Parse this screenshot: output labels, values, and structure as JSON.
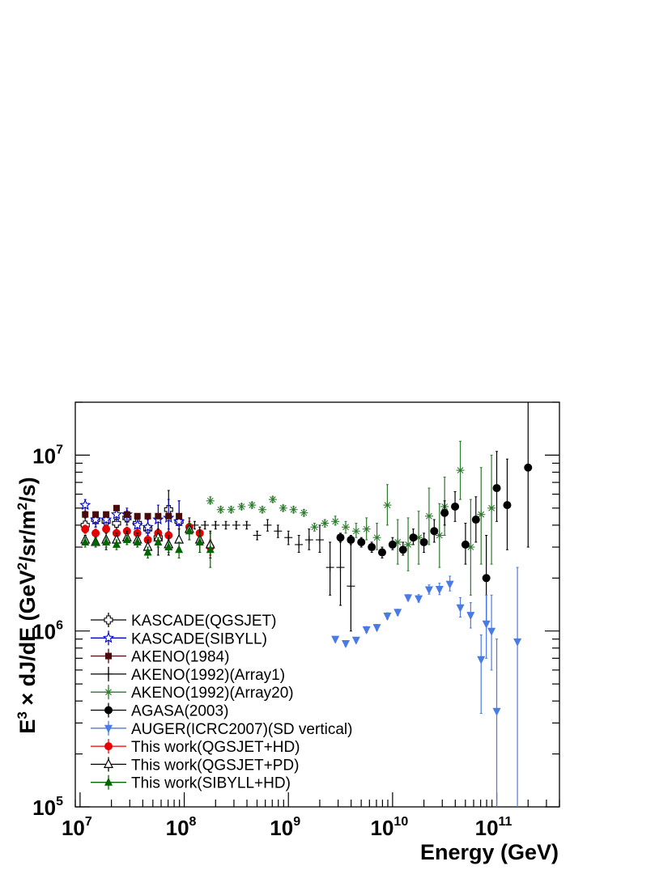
{
  "chart_data": {
    "type": "scatter",
    "title": "",
    "xlabel": "Energy (GeV)",
    "ylabel": "E^3 × dJ/dE (GeV^2/sr/m^2/s)",
    "x_scale": "log",
    "y_scale": "log",
    "xlim": [
      9000000.0,
      400000000000.0
    ],
    "ylim": [
      100000.0,
      20000000.0
    ],
    "grid": false,
    "legend_position": "bottom-left",
    "x_ticks": [
      {
        "base": "10",
        "exp": "7"
      },
      {
        "base": "10",
        "exp": "8"
      },
      {
        "base": "10",
        "exp": "9"
      },
      {
        "base": "10",
        "exp": "10"
      },
      {
        "base": "10",
        "exp": "11"
      }
    ],
    "y_ticks": [
      {
        "base": "10",
        "exp": "5"
      },
      {
        "base": "10",
        "exp": "6"
      },
      {
        "base": "10",
        "exp": "7"
      }
    ],
    "series": [
      {
        "name": "KASCADE(QGSJET)",
        "marker": "open-cross",
        "color": "#000000",
        "points": [
          [
            11200000.0,
            4000000.0,
            3600000.0,
            4400000.0
          ],
          [
            14100000.0,
            4300000.0,
            3900000.0,
            4700000.0
          ],
          [
            17800000.0,
            4200000.0,
            3800000.0,
            4600000.0
          ],
          [
            22400000.0,
            4100000.0,
            3700000.0,
            4500000.0
          ],
          [
            28200000.0,
            4400000.0,
            4000000.0,
            4800000.0
          ],
          [
            35500000.0,
            4100000.0,
            3700000.0,
            4500000.0
          ],
          [
            44700000.0,
            3800000.0,
            3300000.0,
            4300000.0
          ],
          [
            56200000.0,
            3400000.0,
            2700000.0,
            4200000.0
          ],
          [
            70800000.0,
            4900000.0,
            3800000.0,
            6300000.0
          ],
          [
            89100000.0,
            4200000.0,
            3200000.0,
            5500000.0
          ]
        ]
      },
      {
        "name": "KASCADE(SIBYLL)",
        "marker": "open-star",
        "color": "#0000cc",
        "points": [
          [
            11200000.0,
            5200000.0,
            4800000.0,
            5600000.0
          ],
          [
            14100000.0,
            4300000.0,
            3900000.0,
            4700000.0
          ],
          [
            17800000.0,
            4300000.0,
            3900000.0,
            4700000.0
          ],
          [
            22400000.0,
            4600000.0,
            4200000.0,
            5000000.0
          ],
          [
            28200000.0,
            4600000.0,
            4200000.0,
            5000000.0
          ],
          [
            35500000.0,
            4000000.0,
            3600000.0,
            4400000.0
          ],
          [
            44700000.0,
            3900000.0,
            3400000.0,
            4400000.0
          ],
          [
            56200000.0,
            4300000.0,
            3600000.0,
            5200000.0
          ],
          [
            70800000.0,
            4400000.0,
            3500000.0,
            5600000.0
          ],
          [
            89100000.0,
            4200000.0,
            3200000.0,
            5500000.0
          ]
        ]
      },
      {
        "name": "AKENO(1984)",
        "marker": "filled-square",
        "color": "#4a0a0a",
        "points": [
          [
            11200000.0,
            4600000.0
          ],
          [
            14100000.0,
            4600000.0
          ],
          [
            17800000.0,
            4600000.0
          ],
          [
            22400000.0,
            5000000.0
          ],
          [
            28200000.0,
            4600000.0
          ],
          [
            35500000.0,
            4500000.0
          ],
          [
            44700000.0,
            4500000.0
          ],
          [
            56200000.0,
            4500000.0
          ],
          [
            70800000.0,
            4500000.0
          ],
          [
            89100000.0,
            4500000.0
          ]
        ]
      },
      {
        "name": "AKENO(1992)(Array1)",
        "marker": "cross",
        "color": "#000000",
        "points": [
          [
            126000000.0,
            4000000.0,
            3800000.0,
            4200000.0
          ],
          [
            158000000.0,
            4000000.0,
            3800000.0,
            4200000.0
          ],
          [
            200000000.0,
            4000000.0,
            3800000.0,
            4200000.0
          ],
          [
            251000000.0,
            4000000.0,
            3800000.0,
            4200000.0
          ],
          [
            316000000.0,
            4000000.0,
            3800000.0,
            4200000.0
          ],
          [
            398000000.0,
            4000000.0,
            3800000.0,
            4200000.0
          ],
          [
            501000000.0,
            3500000.0,
            3300000.0,
            3700000.0
          ],
          [
            631000000.0,
            4000000.0,
            3700000.0,
            4300000.0
          ],
          [
            794000000.0,
            3700000.0,
            3400000.0,
            4000000.0
          ],
          [
            1000000000.0,
            3400000.0,
            3100000.0,
            3700000.0
          ],
          [
            1260000000.0,
            3100000.0,
            2800000.0,
            3500000.0
          ],
          [
            1580000000.0,
            3300000.0,
            2900000.0,
            3800000.0
          ],
          [
            2000000000.0,
            3300000.0,
            2800000.0,
            4000000.0
          ],
          [
            2510000000.0,
            2300000.0,
            1600000.0,
            3200000.0
          ],
          [
            3160000000.0,
            2300000.0,
            1400000.0,
            3500000.0
          ],
          [
            3980000000.0,
            1800000.0,
            1000000.0,
            3200000.0
          ]
        ]
      },
      {
        "name": "AKENO(1992)(Array20)",
        "marker": "asterisk",
        "color": "#2a7a2a",
        "points": [
          [
            178000000.0,
            5500000.0,
            5300000.0,
            5800000.0
          ],
          [
            224000000.0,
            4900000.0,
            4700000.0,
            5100000.0
          ],
          [
            282000000.0,
            4900000.0,
            4700000.0,
            5100000.0
          ],
          [
            355000000.0,
            5100000.0,
            4900000.0,
            5300000.0
          ],
          [
            447000000.0,
            5200000.0,
            5000000.0,
            5400000.0
          ],
          [
            562000000.0,
            4900000.0,
            4700000.0,
            5100000.0
          ],
          [
            708000000.0,
            5600000.0,
            5400000.0,
            5800000.0
          ],
          [
            891000000.0,
            5000000.0,
            4800000.0,
            5200000.0
          ],
          [
            1120000000.0,
            4900000.0,
            4700000.0,
            5100000.0
          ],
          [
            1410000000.0,
            4700000.0,
            4500000.0,
            4900000.0
          ],
          [
            1780000000.0,
            3900000.0,
            3700000.0,
            4100000.0
          ],
          [
            2240000000.0,
            4100000.0,
            3900000.0,
            4300000.0
          ],
          [
            2820000000.0,
            4200000.0,
            4000000.0,
            4500000.0
          ],
          [
            3550000000.0,
            3900000.0,
            3600000.0,
            4200000.0
          ],
          [
            4470000000.0,
            3700000.0,
            3400000.0,
            4100000.0
          ],
          [
            5620000000.0,
            3800000.0,
            3300000.0,
            4400000.0
          ],
          [
            7080000000.0,
            3400000.0,
            2900000.0,
            4100000.0
          ],
          [
            8910000000.0,
            5200000.0,
            4000000.0,
            6800000.0
          ],
          [
            11200000000.0,
            3200000.0,
            2400000.0,
            4300000.0
          ],
          [
            14100000000.0,
            3100000.0,
            2200000.0,
            4400000.0
          ],
          [
            17800000000.0,
            3400000.0,
            2400000.0,
            4800000.0
          ],
          [
            22400000000.0,
            4500000.0,
            3100000.0,
            6500000.0
          ],
          [
            28200000000.0,
            3500000.0,
            2300000.0,
            5300000.0
          ],
          [
            31600000000.0,
            5100000.0,
            3500000.0,
            7500000.0
          ],
          [
            44700000000.0,
            8200000.0,
            5600000.0,
            12000000.0
          ],
          [
            56200000000.0,
            3000000.0,
            1600000.0,
            5600000.0
          ],
          [
            70800000000.0,
            4600000.0,
            2400000.0,
            8500000.0
          ],
          [
            89100000000.0,
            5000000.0,
            2400000.0,
            10000000.0
          ]
        ]
      },
      {
        "name": "AGASA(2003)",
        "marker": "filled-circle",
        "color": "#000000",
        "points": [
          [
            3160000000.0,
            3400000.0,
            3200000.0,
            3600000.0
          ],
          [
            3980000000.0,
            3300000.0,
            3100000.0,
            3500000.0
          ],
          [
            5010000000.0,
            3200000.0,
            3000000.0,
            3400000.0
          ],
          [
            6310000000.0,
            3000000.0,
            2800000.0,
            3200000.0
          ],
          [
            7940000000.0,
            2800000.0,
            2600000.0,
            3000000.0
          ],
          [
            10000000000.0,
            3100000.0,
            2900000.0,
            3400000.0
          ],
          [
            12600000000.0,
            2900000.0,
            2700000.0,
            3200000.0
          ],
          [
            15800000000.0,
            3400000.0,
            3100000.0,
            3800000.0
          ],
          [
            20000000000.0,
            3200000.0,
            2800000.0,
            3600000.0
          ],
          [
            25100000000.0,
            3700000.0,
            3200000.0,
            4300000.0
          ],
          [
            31600000000.0,
            4700000.0,
            4000000.0,
            5500000.0
          ],
          [
            39800000000.0,
            5100000.0,
            4200000.0,
            6200000.0
          ],
          [
            50100000000.0,
            3100000.0,
            2400000.0,
            4100000.0
          ],
          [
            63100000000.0,
            4300000.0,
            3200000.0,
            5800000.0
          ],
          [
            79400000000.0,
            2000000.0,
            1100000.0,
            3500000.0
          ],
          [
            100000000000.0,
            6500000.0,
            4200000.0,
            10500000.0
          ],
          [
            126000000000.0,
            5200000.0,
            2900000.0,
            9500000.0
          ],
          [
            200000000000.0,
            8500000.0,
            3000000.0,
            20000000.0
          ]
        ]
      },
      {
        "name": "AUGER(ICRC2007)(SD vertical)",
        "marker": "filled-triangle-down",
        "color": "#4a7ae6",
        "points": [
          [
            2820000000.0,
            900000.0,
            870000.0,
            930000.0
          ],
          [
            3550000000.0,
            850000.0,
            820000.0,
            880000.0
          ],
          [
            4470000000.0,
            890000.0,
            860000.0,
            920000.0
          ],
          [
            5620000000.0,
            1020000.0,
            980000.0,
            1060000.0
          ],
          [
            7080000000.0,
            1050000.0,
            1010000.0,
            1090000.0
          ],
          [
            8910000000.0,
            1220000.0,
            1170000.0,
            1270000.0
          ],
          [
            11200000000.0,
            1280000.0,
            1230000.0,
            1330000.0
          ],
          [
            14100000000.0,
            1550000.0,
            1490000.0,
            1610000.0
          ],
          [
            17800000000.0,
            1530000.0,
            1460000.0,
            1610000.0
          ],
          [
            22400000000.0,
            1720000.0,
            1620000.0,
            1830000.0
          ],
          [
            28200000000.0,
            1730000.0,
            1610000.0,
            1870000.0
          ],
          [
            35500000000.0,
            1850000.0,
            1690000.0,
            2050000.0
          ],
          [
            44700000000.0,
            1360000.0,
            1200000.0,
            1550000.0
          ],
          [
            56200000000.0,
            1230000.0,
            1040000.0,
            1450000.0
          ],
          [
            70800000000.0,
            690000.0,
            340000.0,
            950000.0
          ],
          [
            79400000000.0,
            1100000.0,
            700000.0,
            1600000.0
          ],
          [
            89100000000.0,
            1000000.0,
            600000.0,
            1600000.0
          ],
          [
            100000000000.0,
            350000.0,
            100000.0,
            900000.0
          ],
          [
            158000000000.0,
            870000.0,
            100000.0,
            2300000.0
          ]
        ]
      },
      {
        "name": "This work(QGSJET+HD)",
        "marker": "filled-circle",
        "color": "#e60000",
        "points": [
          [
            11200000.0,
            3800000.0,
            3600000.0,
            4000000.0
          ],
          [
            14100000.0,
            3600000.0,
            3400000.0,
            3800000.0
          ],
          [
            17800000.0,
            3800000.0,
            3600000.0,
            4000000.0
          ],
          [
            22400000.0,
            3600000.0,
            3400000.0,
            3800000.0
          ],
          [
            28200000.0,
            3700000.0,
            3500000.0,
            3900000.0
          ],
          [
            35500000.0,
            3600000.0,
            3400000.0,
            3800000.0
          ],
          [
            44700000.0,
            3300000.0,
            3100000.0,
            3500000.0
          ],
          [
            56200000.0,
            3600000.0,
            3400000.0,
            3800000.0
          ],
          [
            70800000.0,
            3500000.0,
            3300000.0,
            3700000.0
          ],
          [
            112000000.0,
            3900000.0,
            3600000.0,
            4200000.0
          ],
          [
            141000000.0,
            3600000.0,
            3300000.0,
            3900000.0
          ],
          [
            178000000.0,
            3000000.0,
            2700000.0,
            3300000.0
          ]
        ]
      },
      {
        "name": "This work(QGSJET+PD)",
        "marker": "open-triangle-up",
        "color": "#000000",
        "points": [
          [
            11200000.0,
            3300000.0,
            3100000.0,
            3500000.0
          ],
          [
            14100000.0,
            3200000.0,
            3000000.0,
            3400000.0
          ],
          [
            17800000.0,
            3300000.0,
            2900000.0,
            3600000.0
          ],
          [
            22400000.0,
            3300000.0,
            3000000.0,
            3600000.0
          ],
          [
            28200000.0,
            3400000.0,
            3100000.0,
            3700000.0
          ],
          [
            35500000.0,
            3300000.0,
            3000000.0,
            3600000.0
          ],
          [
            44700000.0,
            3000000.0,
            2700000.0,
            3300000.0
          ],
          [
            56200000.0,
            3400000.0,
            3000000.0,
            3800000.0
          ],
          [
            70800000.0,
            3100000.0,
            2700000.0,
            3500000.0
          ],
          [
            89100000.0,
            3300000.0,
            2800000.0,
            3800000.0
          ],
          [
            112000000.0,
            3800000.0,
            3300000.0,
            4400000.0
          ],
          [
            141000000.0,
            3300000.0,
            2800000.0,
            3900000.0
          ],
          [
            178000000.0,
            3100000.0,
            2600000.0,
            3700000.0
          ]
        ]
      },
      {
        "name": "This work(SIBYLL+HD)",
        "marker": "filled-triangle-up",
        "color": "#006600",
        "points": [
          [
            11200000.0,
            3200000.0,
            3000000.0,
            3400000.0
          ],
          [
            14100000.0,
            3200000.0,
            3000000.0,
            3400000.0
          ],
          [
            17800000.0,
            3200000.0,
            3000000.0,
            3400000.0
          ],
          [
            22400000.0,
            3100000.0,
            2900000.0,
            3300000.0
          ],
          [
            28200000.0,
            3300000.0,
            3100000.0,
            3500000.0
          ],
          [
            35500000.0,
            3200000.0,
            3000000.0,
            3400000.0
          ],
          [
            44700000.0,
            2800000.0,
            2600000.0,
            3000000.0
          ],
          [
            56200000.0,
            3200000.0,
            3000000.0,
            3400000.0
          ],
          [
            70800000.0,
            3000000.0,
            2800000.0,
            3200000.0
          ],
          [
            89100000.0,
            2900000.0,
            2600000.0,
            3200000.0
          ],
          [
            112000000.0,
            3700000.0,
            3300000.0,
            4100000.0
          ],
          [
            141000000.0,
            3200000.0,
            2800000.0,
            3600000.0
          ],
          [
            178000000.0,
            2900000.0,
            2300000.0,
            3600000.0
          ]
        ]
      }
    ]
  }
}
